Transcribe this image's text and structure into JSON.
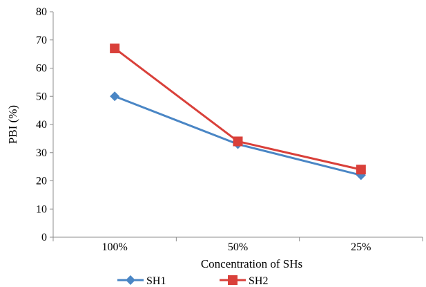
{
  "chart_data": {
    "type": "line",
    "categories": [
      "100%",
      "50%",
      "25%"
    ],
    "series": [
      {
        "name": "SH1",
        "values": [
          50,
          33,
          22
        ],
        "color": "#4A86C5",
        "marker": "diamond"
      },
      {
        "name": "SH2",
        "values": [
          67,
          34,
          24
        ],
        "color": "#D9403A",
        "marker": "square"
      }
    ],
    "xlabel": "Concentration of SHs",
    "ylabel": "PBI (%)",
    "ylim": [
      0,
      80
    ],
    "yticks": [
      0,
      10,
      20,
      30,
      40,
      50,
      60,
      70,
      80
    ],
    "grid": false,
    "legend_position": "bottom"
  }
}
